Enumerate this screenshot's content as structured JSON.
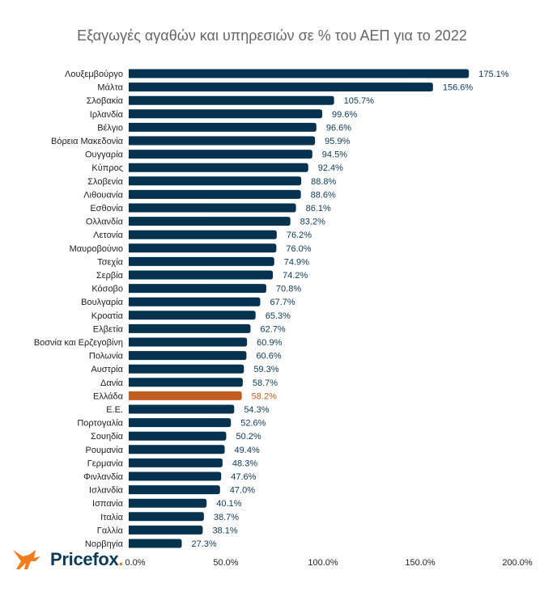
{
  "chart_data": {
    "type": "bar",
    "orientation": "horizontal",
    "title": "Εξαγωγές αγαθών και υπηρεσιών σε % του ΑΕΠ για το 2022",
    "categories": [
      "Λουξεμβούργο",
      "Μάλτα",
      "Σλοβακία",
      "Ιρλανδία",
      "Βέλγιο",
      "Βόρεια Μακεδονία",
      "Ουγγαρία",
      "Κύπρος",
      "Σλοβενία",
      "Λιθουανία",
      "Εσθονία",
      "Ολλανδία",
      "Λετονία",
      "Μαυροβούνιο",
      "Τσεχία",
      "Σερβία",
      "Κόσοβο",
      "Βουλγαρία",
      "Κροατία",
      "Ελβετία",
      "Βοσνία και Ερζεγοβίνη",
      "Πολωνία",
      "Αυστρία",
      "Δανία",
      "Ελλάδα",
      "Ε.Ε.",
      "Πορτογαλία",
      "Σουηδία",
      "Ρουμανία",
      "Γερμανία",
      "Φινλανδία",
      "Ισλανδία",
      "Ισπανία",
      "Ιταλία",
      "Γαλλία",
      "Νορβηγία"
    ],
    "values": [
      175.1,
      156.6,
      105.7,
      99.6,
      96.6,
      95.9,
      94.5,
      92.4,
      88.8,
      88.6,
      86.1,
      83.2,
      76.2,
      76.0,
      74.9,
      74.2,
      70.8,
      67.7,
      65.3,
      62.7,
      60.9,
      60.6,
      59.3,
      58.7,
      58.2,
      54.3,
      52.6,
      50.2,
      49.4,
      48.3,
      47.6,
      47.0,
      40.1,
      38.7,
      38.1,
      27.3
    ],
    "value_labels": [
      "175.1%",
      "156.6%",
      "105.7%",
      "99.6%",
      "96.6%",
      "95.9%",
      "94.5%",
      "92.4%",
      "88.8%",
      "88.6%",
      "86.1%",
      "83.2%",
      "76.2%",
      "76.0%",
      "74.9%",
      "74.2%",
      "70.8%",
      "67.7%",
      "65.3%",
      "62.7%",
      "60.9%",
      "60.6%",
      "59.3%",
      "58.7%",
      "58.2%",
      "54.3%",
      "52.6%",
      "50.2%",
      "49.4%",
      "48.3%",
      "47.6%",
      "47.0%",
      "40.1%",
      "38.7%",
      "38.1%",
      "27.3%"
    ],
    "xlim": [
      0,
      200
    ],
    "xticks": [
      0,
      50,
      100,
      150,
      200
    ],
    "xtick_labels": [
      "0.0%",
      "50.0%",
      "100.0%",
      "150.0%",
      "200.0%"
    ],
    "grid": false,
    "highlight": "Ελλάδα",
    "colors": {
      "bar": "#05324f",
      "highlight": "#c05f20",
      "label": "#0d3a57"
    }
  },
  "logo": {
    "text": "Pricefox",
    "dot": "."
  }
}
